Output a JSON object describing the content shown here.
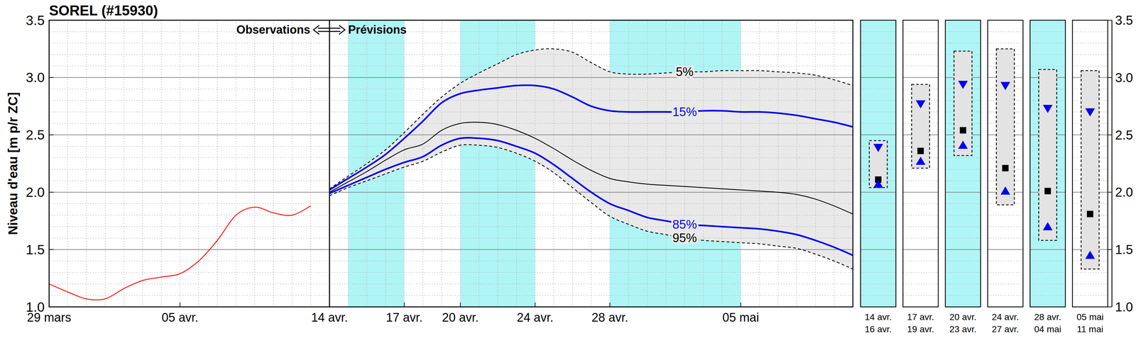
{
  "chart_data": [
    {
      "type": "line",
      "title": "SOREL (#15930)",
      "y_label": "Niveau d'eau [m p/r ZC]",
      "annotations": [
        {
          "text": "Observations"
        },
        {
          "text": "Prévisions"
        }
      ],
      "divider": 15,
      "bands": [
        {
          "from": 16,
          "to": 19,
          "color": "#aff5f5"
        },
        {
          "from": 22,
          "to": 26,
          "color": "#aff5f5"
        },
        {
          "from": 30,
          "to": 37,
          "color": "#aff5f5"
        }
      ],
      "xlim": [
        0,
        43
      ],
      "ylim": [
        1,
        3.5
      ],
      "xticks": [
        {
          "value": 0,
          "label": "29 mars"
        },
        {
          "value": 7,
          "label": "05 avr."
        },
        {
          "value": 15,
          "label": "14 avr."
        },
        {
          "value": 19,
          "label": "17 avr."
        },
        {
          "value": 22,
          "label": "20 avr."
        },
        {
          "value": 26,
          "label": "24 avr."
        },
        {
          "value": 30,
          "label": "28 avr."
        },
        {
          "value": 37,
          "label": "05 mai"
        }
      ],
      "yticks": [
        {
          "value": 1,
          "label": "1.0"
        },
        1.5,
        {
          "value": 2,
          "label": "2.0"
        },
        2.5,
        {
          "value": 3,
          "label": "3.0"
        },
        3.5
      ],
      "grid": true,
      "series": [
        {
          "color": "#ff0000",
          "line_style": "solid",
          "x": [
            0,
            1,
            2,
            3,
            4,
            5,
            6,
            7,
            8,
            9,
            10,
            11,
            12,
            13,
            14
          ],
          "values": [
            1.2,
            1.13,
            1.07,
            1.07,
            1.16,
            1.23,
            1.26,
            1.29,
            1.4,
            1.58,
            1.8,
            1.87,
            1.82,
            1.8,
            1.88
          ]
        },
        {
          "name": "5%",
          "color": "#000000",
          "line_style": "dashed",
          "x": [
            15,
            16,
            17,
            18,
            19,
            20,
            21,
            22,
            23,
            24,
            25,
            26,
            27,
            28,
            29,
            30,
            31,
            32,
            33,
            34,
            35,
            36,
            37,
            38,
            39,
            40,
            41,
            42,
            43
          ],
          "values": [
            2.03,
            2.14,
            2.25,
            2.37,
            2.52,
            2.68,
            2.83,
            2.95,
            3.04,
            3.12,
            3.2,
            3.24,
            3.25,
            3.22,
            3.13,
            3.05,
            3.03,
            3.03,
            3.04,
            3.05,
            3.05,
            3.06,
            3.06,
            3.06,
            3.05,
            3.04,
            3.02,
            2.98,
            2.93
          ]
        },
        {
          "name": "15%",
          "color": "#0000ee",
          "line_style": "solid",
          "x": [
            15,
            16,
            17,
            18,
            19,
            20,
            21,
            22,
            23,
            24,
            25,
            26,
            27,
            28,
            29,
            30,
            31,
            32,
            33,
            34,
            35,
            36,
            37,
            38,
            39,
            40,
            41,
            42,
            43
          ],
          "values": [
            2.02,
            2.12,
            2.22,
            2.33,
            2.47,
            2.62,
            2.78,
            2.86,
            2.89,
            2.91,
            2.93,
            2.93,
            2.9,
            2.83,
            2.75,
            2.71,
            2.7,
            2.7,
            2.7,
            2.7,
            2.71,
            2.71,
            2.7,
            2.7,
            2.69,
            2.67,
            2.64,
            2.61,
            2.57
          ]
        },
        {
          "color": "#000000",
          "line_style": "solid",
          "x": [
            15,
            16,
            17,
            18,
            19,
            20,
            21,
            22,
            23,
            24,
            25,
            26,
            27,
            28,
            29,
            30,
            31,
            32,
            33,
            34,
            35,
            36,
            37,
            38,
            39,
            40,
            41,
            42,
            43
          ],
          "values": [
            2.0,
            2.09,
            2.18,
            2.28,
            2.37,
            2.42,
            2.54,
            2.6,
            2.61,
            2.59,
            2.54,
            2.47,
            2.38,
            2.28,
            2.19,
            2.12,
            2.09,
            2.07,
            2.06,
            2.05,
            2.04,
            2.03,
            2.02,
            2.01,
            2.0,
            1.98,
            1.94,
            1.88,
            1.81
          ]
        },
        {
          "name": "85%",
          "color": "#0000ee",
          "line_style": "solid",
          "x": [
            15,
            16,
            17,
            18,
            19,
            20,
            21,
            22,
            23,
            24,
            25,
            26,
            27,
            28,
            29,
            30,
            31,
            32,
            33,
            34,
            35,
            36,
            37,
            38,
            39,
            40,
            41,
            42,
            43
          ],
          "values": [
            1.99,
            2.06,
            2.13,
            2.2,
            2.26,
            2.31,
            2.41,
            2.47,
            2.47,
            2.45,
            2.4,
            2.34,
            2.24,
            2.12,
            2.0,
            1.9,
            1.84,
            1.78,
            1.75,
            1.72,
            1.71,
            1.7,
            1.69,
            1.68,
            1.66,
            1.63,
            1.58,
            1.52,
            1.45
          ]
        },
        {
          "name": "95%",
          "color": "#000000",
          "line_style": "dashed",
          "x": [
            15,
            16,
            17,
            18,
            19,
            20,
            21,
            22,
            23,
            24,
            25,
            26,
            27,
            28,
            29,
            30,
            31,
            32,
            33,
            34,
            35,
            36,
            37,
            38,
            39,
            40,
            41,
            42,
            43
          ],
          "values": [
            1.97,
            2.04,
            2.1,
            2.16,
            2.22,
            2.27,
            2.35,
            2.41,
            2.41,
            2.39,
            2.34,
            2.27,
            2.17,
            2.04,
            1.91,
            1.79,
            1.72,
            1.66,
            1.63,
            1.6,
            1.58,
            1.57,
            1.56,
            1.55,
            1.53,
            1.51,
            1.46,
            1.4,
            1.33
          ]
        }
      ]
    },
    {
      "type": "box",
      "categories": [
        [
          "14 avr.",
          "16 avr."
        ],
        [
          "17 avr.",
          "19 avr."
        ],
        [
          "20 avr.",
          "23 avr."
        ],
        [
          "24 avr.",
          "27 avr."
        ],
        [
          "28 avr.",
          "04 mai"
        ],
        [
          "05 mai",
          "11 mai"
        ]
      ],
      "colors": [
        "#aff5f5",
        "#ffffff",
        "#aff5f5",
        "#ffffff",
        "#aff5f5",
        "#ffffff"
      ],
      "line_style": "dashed",
      "low": [
        2.04,
        2.21,
        2.32,
        1.89,
        1.58,
        1.33
      ],
      "high": [
        2.45,
        2.94,
        3.23,
        3.25,
        3.07,
        3.06
      ],
      "series": [
        {
          "color": "#0000ee",
          "marker": "triangle-down",
          "values": [
            2.39,
            2.77,
            2.94,
            2.93,
            2.73,
            2.7
          ]
        },
        {
          "color": "#000000",
          "marker": "square",
          "values": [
            2.11,
            2.36,
            2.54,
            2.21,
            2.01,
            1.81
          ]
        },
        {
          "color": "#0000ee",
          "marker": "triangle-up",
          "values": [
            2.07,
            2.27,
            2.41,
            2.01,
            1.7,
            1.45
          ]
        }
      ],
      "ylim": [
        1,
        3.5
      ],
      "yticks": [
        {
          "value": 1,
          "label": "1.0"
        },
        1.5,
        {
          "value": 2,
          "label": "2.0"
        },
        2.5,
        {
          "value": 3,
          "label": "3.0"
        },
        3.5
      ],
      "grid": true
    }
  ]
}
